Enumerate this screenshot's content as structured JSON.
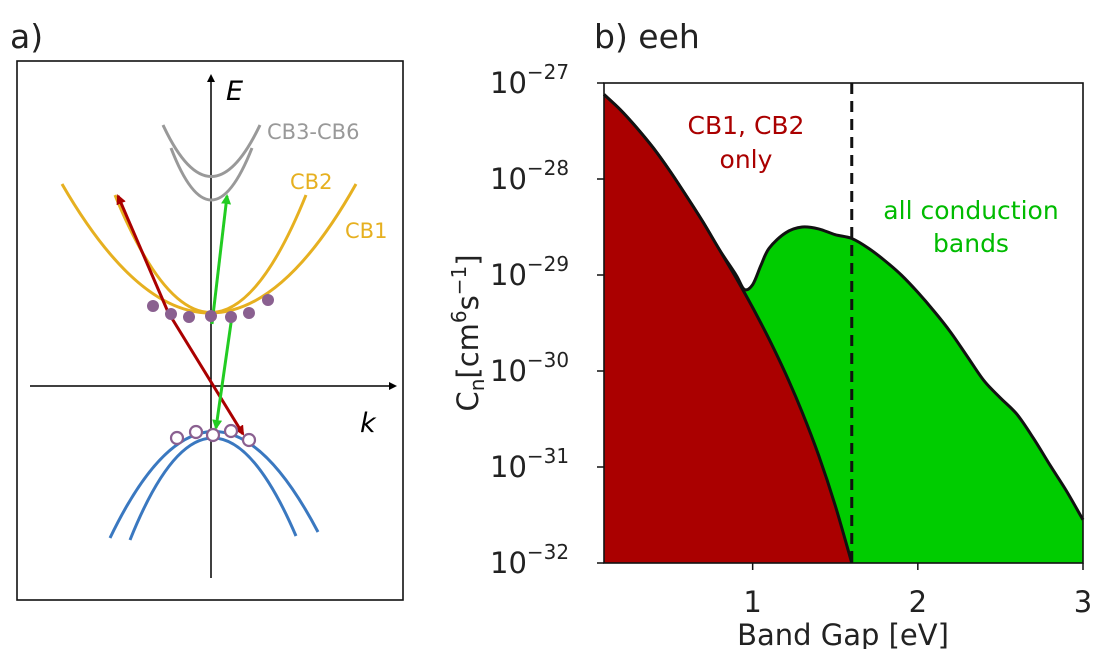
{
  "panel_a": {
    "label": "a)",
    "axis_e_label": "E",
    "axis_k_label": "k",
    "band_labels": {
      "cb3_cb6": "CB3-CB6",
      "cb2": "CB2",
      "cb1": "CB1"
    },
    "colors": {
      "upper_bands": "#999999",
      "conduction": "#e6b020",
      "valence": "#3a78c0",
      "transition_cb12": "#aa0000",
      "transition_all": "#22cc22",
      "electron": "#8a6090",
      "hole_outline": "#8a6090"
    }
  },
  "panel_b": {
    "label": "b) eeh",
    "annotations": {
      "cb12_line1": "CB1, CB2",
      "cb12_line2": "only",
      "all_line1": "all conduction",
      "all_line2": "bands"
    },
    "colors": {
      "cb12_fill": "#aa0000",
      "all_fill": "#00cc00"
    }
  },
  "chart_data": {
    "type": "area",
    "title": "",
    "xlabel": "Band Gap [eV]",
    "ylabel_main": "C",
    "ylabel_sub": "n",
    "ylabel_rest": "[cm",
    "ylabel_sup1": "6",
    "ylabel_mid": "s",
    "ylabel_sup2": "−1",
    "ylabel_end": "]",
    "xlim": [
      0.1,
      3.0
    ],
    "ylim_exponent": [
      -32,
      -27
    ],
    "yscale": "log",
    "x_ticks": [
      1,
      2,
      3
    ],
    "x_tick_labels": [
      "1",
      "2",
      "3"
    ],
    "y_tick_base": "10",
    "y_tick_exponents": [
      "−27",
      "−28",
      "−29",
      "−30",
      "−31",
      "−32"
    ],
    "y_tick_values": [
      -27,
      -28,
      -29,
      -30,
      -31,
      -32
    ],
    "vline_x": 1.6,
    "series": [
      {
        "key": "cb12",
        "x": [
          0.1,
          0.2,
          0.3,
          0.4,
          0.5,
          0.6,
          0.7,
          0.8,
          0.9,
          1.0,
          1.1,
          1.2,
          1.3,
          1.4,
          1.5,
          1.6
        ],
        "log10_y": [
          -27.12,
          -27.28,
          -27.47,
          -27.68,
          -27.92,
          -28.18,
          -28.45,
          -28.74,
          -29.03,
          -29.34,
          -29.67,
          -30.03,
          -30.43,
          -30.88,
          -31.4,
          -32.0
        ]
      },
      {
        "key": "all",
        "x": [
          0.1,
          0.2,
          0.3,
          0.4,
          0.5,
          0.6,
          0.7,
          0.8,
          0.9,
          0.95,
          1.0,
          1.05,
          1.1,
          1.2,
          1.3,
          1.4,
          1.5,
          1.6,
          1.7,
          1.8,
          1.9,
          2.0,
          2.1,
          2.2,
          2.3,
          2.4,
          2.5,
          2.6,
          2.7,
          2.8,
          2.9,
          3.0
        ],
        "log10_y": [
          -27.12,
          -27.28,
          -27.47,
          -27.68,
          -27.92,
          -28.18,
          -28.45,
          -28.74,
          -29.0,
          -29.15,
          -29.1,
          -28.9,
          -28.72,
          -28.56,
          -28.5,
          -28.52,
          -28.58,
          -28.62,
          -28.72,
          -28.85,
          -29.0,
          -29.18,
          -29.38,
          -29.6,
          -29.85,
          -30.1,
          -30.28,
          -30.45,
          -30.7,
          -30.98,
          -31.25,
          -31.55
        ]
      }
    ]
  }
}
